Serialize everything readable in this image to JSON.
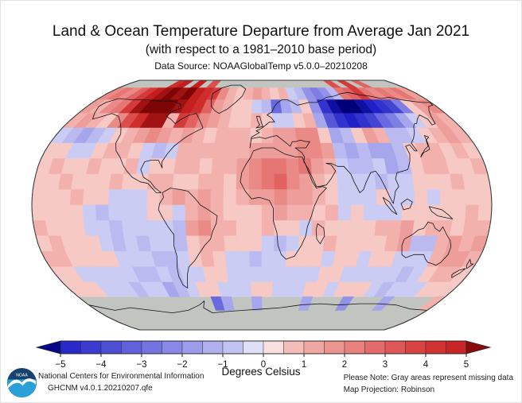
{
  "header": {
    "title": "Land & Ocean Temperature Departure from Average Jan 2021",
    "subtitle": "(with respect to a 1981–2010 base period)",
    "data_source": "Data Source: NOAAGlobalTemp v5.0.0–20210208"
  },
  "colorbar": {
    "label": "Degrees Celsius",
    "ticks": [
      "−5",
      "−4",
      "−3",
      "−2",
      "−1",
      "0",
      "1",
      "2",
      "3",
      "4",
      "5"
    ],
    "tick_values": [
      -5,
      -4,
      -3,
      -2,
      -1,
      0,
      1,
      2,
      3,
      4,
      5
    ],
    "min": -5,
    "max": 5,
    "segment_step": 0.5
  },
  "footer": {
    "logo_text": "NOAA",
    "org": "National Centers for Environmental Information",
    "dataset": "GHCNM v4.0.1.20210207.qfe",
    "note": "Please Note: Gray areas represent missing data",
    "projection": "Map Projection: Robinson"
  },
  "chart_data": {
    "type": "heatmap",
    "title": "Land & Ocean Temperature Departure from Average Jan 2021",
    "subtitle": "(with respect to a 1981–2010 base period)",
    "data_source": "NOAAGlobalTemp v5.0.0–20210208",
    "units": "Degrees Celsius",
    "projection": "Robinson",
    "legend_range": [
      -5,
      5
    ],
    "missing_color": "#c2c4c0",
    "scale_stops": [
      [
        -6,
        "#000078"
      ],
      [
        -5,
        "#2020c8"
      ],
      [
        -4,
        "#4444d2"
      ],
      [
        -3,
        "#6a6ade"
      ],
      [
        -2,
        "#9292e8"
      ],
      [
        -1,
        "#babaf0"
      ],
      [
        -0.5,
        "#caccf3"
      ],
      [
        -0.15,
        "#e8e8fa"
      ],
      [
        0.15,
        "#fae8e8"
      ],
      [
        0.5,
        "#f6c9c5"
      ],
      [
        1,
        "#f2b1ad"
      ],
      [
        2,
        "#ea8a86"
      ],
      [
        3,
        "#e16260"
      ],
      [
        4,
        "#d53a3a"
      ],
      [
        5,
        "#c41f1f"
      ],
      [
        6,
        "#7d0505"
      ]
    ],
    "grid": {
      "lon_min": -180,
      "lon_max": 180,
      "lat_max": 90,
      "lat_min": -90,
      "cell_deg": 10,
      "order": "rows top-to-bottom from 90N to 90S, columns left-to-right from 180W to 180E",
      "missing": null
    },
    "anomaly_values_degC": [
      [
        null,
        null,
        null,
        null,
        null,
        null,
        4.5,
        5,
        null,
        5,
        null,
        3.5,
        null,
        null,
        null,
        null,
        null,
        null,
        null,
        null,
        null,
        null,
        null,
        null,
        null,
        null,
        null,
        3.5,
        null,
        4,
        null,
        3,
        null,
        null,
        null,
        null
      ],
      [
        2,
        2.5,
        2,
        3,
        4,
        5,
        5.5,
        6,
        5.5,
        6,
        5,
        4.5,
        4,
        2,
        1,
        0.5,
        1,
        1.5,
        1,
        0.5,
        1,
        -0.5,
        -1,
        -2,
        -2.5,
        -2,
        -1,
        2.5,
        3,
        4,
        2.5,
        2,
        2.5,
        2,
        2.5,
        1.5
      ],
      [
        1.5,
        1,
        2,
        2.5,
        4,
        5.5,
        6,
        6,
        6,
        5.5,
        5,
        4.5,
        3,
        1.5,
        1,
        0.5,
        0.5,
        -0.5,
        -1,
        -3,
        -1.5,
        -1,
        0.5,
        -2,
        -4.5,
        -5.5,
        -6,
        -6,
        -5.5,
        -5,
        -4.5,
        -4,
        -2.5,
        0.5,
        1.5,
        2
      ],
      [
        1,
        1.5,
        1,
        0.5,
        2,
        3.5,
        4.5,
        5.5,
        5.5,
        1,
        4,
        3,
        2,
        1.5,
        1,
        0.5,
        0.5,
        1,
        0.5,
        -0.5,
        -0.5,
        0.5,
        1,
        -1.5,
        -3.5,
        -4.5,
        -5,
        -4.5,
        -4,
        -3,
        -2.5,
        -1.5,
        -0.5,
        0.5,
        1.5,
        1
      ],
      [
        -0.5,
        -1,
        -1.5,
        -1,
        -0.5,
        0.5,
        1,
        1.5,
        2,
        1.5,
        1,
        1.5,
        1,
        0.5,
        1,
        1,
        1,
        0.5,
        1,
        1.5,
        1.5,
        2,
        2,
        0.5,
        -1.5,
        -1,
        0.5,
        1.5,
        1,
        -1,
        -1,
        -0.5,
        0.5,
        1,
        1.5,
        1
      ],
      [
        0.5,
        0.5,
        -0.5,
        -0.5,
        0.5,
        1,
        1,
        0.5,
        -0.5,
        -1,
        -0.5,
        1,
        1,
        1,
        1,
        1,
        1,
        1.5,
        1.5,
        1.5,
        1.5,
        2,
        2,
        1.5,
        -1,
        -1.5,
        -1,
        -1.5,
        -1.5,
        -1,
        0.5,
        1,
        1,
        0.5,
        1,
        0.5
      ],
      [
        0.5,
        1,
        0.5,
        0.5,
        1,
        0.5,
        0.5,
        1,
        -0.5,
        0.5,
        0.5,
        1,
        1,
        0.5,
        1,
        1,
        1.5,
        2,
        2.5,
        2.5,
        2,
        2.5,
        1.5,
        1,
        -0.5,
        -1,
        -1,
        -0.5,
        -1.5,
        -1,
        0.5,
        1,
        1,
        0.5,
        0.5,
        1
      ],
      [
        0.5,
        0.5,
        1,
        0.5,
        0.5,
        0.5,
        1,
        0.5,
        0.5,
        1,
        1,
        0.5,
        0.5,
        1,
        1,
        0.5,
        1.5,
        2,
        2.5,
        3,
        2,
        1.5,
        1,
        0.5,
        -0.5,
        -0.5,
        -0.5,
        -1,
        -0.5,
        -0.5,
        0.5,
        0.5,
        0.5,
        1,
        0.5,
        0.5
      ],
      [
        0.5,
        0.5,
        0.5,
        1,
        0.5,
        0.5,
        -0.5,
        -0.5,
        -0.5,
        0.5,
        1,
        1.5,
        1,
        1.5,
        1,
        0.5,
        1,
        1.5,
        1.5,
        2,
        1.5,
        1.5,
        1,
        0.5,
        -0.5,
        -0.5,
        -0.5,
        0.5,
        -0.5,
        -0.5,
        0.5,
        -0.5,
        0.5,
        0.5,
        0.5,
        0.5
      ],
      [
        0.5,
        0.5,
        0.5,
        0.5,
        -0.5,
        -1,
        -0.5,
        -0.5,
        -0.5,
        0.5,
        0.5,
        -0.5,
        1,
        1.5,
        1,
        0.5,
        0.5,
        0.5,
        1,
        1.5,
        1,
        1,
        0.5,
        1,
        -0.5,
        0.5,
        -0.5,
        -0.5,
        -0.5,
        0.5,
        0.5,
        0.5,
        0.5,
        0.5,
        1,
        0.5
      ],
      [
        1,
        0.5,
        0.5,
        0.5,
        -0.5,
        -0.5,
        -1,
        -0.5,
        -0.5,
        -0.5,
        -0.5,
        -1,
        1.5,
        2,
        1,
        1,
        0.5,
        0.5,
        1,
        0.5,
        0.5,
        -0.5,
        1,
        0.5,
        0.5,
        0.5,
        0.5,
        1,
        1,
        1.5,
        0.5,
        1,
        1,
        0.5,
        1,
        1
      ],
      [
        0.5,
        1,
        0.5,
        0.5,
        0.5,
        -0.5,
        -1,
        -0.5,
        -1,
        -0.5,
        -0.5,
        -1,
        0.5,
        1,
        1,
        0.5,
        0.5,
        0.5,
        -0.5,
        -1,
        -0.5,
        0.5,
        0.5,
        1,
        0.5,
        0.5,
        0.5,
        0.5,
        1,
        1.5,
        -1,
        -1,
        1,
        1.5,
        1,
        1.5
      ],
      [
        1,
        1,
        0.5,
        0.5,
        0.5,
        0.5,
        -0.5,
        -0.5,
        -0.5,
        -1,
        -1,
        -0.5,
        0.5,
        1,
        0.5,
        -0.5,
        -0.5,
        -1,
        -0.5,
        -0.5,
        0.5,
        0.5,
        0.5,
        -0.5,
        0.5,
        0.5,
        -0.5,
        0.5,
        0.5,
        -0.5,
        -0.5,
        -0.5,
        1,
        1.5,
        1.5,
        1
      ],
      [
        0.5,
        0.5,
        -0.5,
        -0.5,
        -0.5,
        -0.5,
        -0.5,
        -1,
        -1,
        -0.5,
        -1,
        -0.5,
        -0.5,
        0.5,
        0.5,
        -0.5,
        -0.5,
        -0.5,
        -0.5,
        -0.5,
        -0.5,
        -0.5,
        -0.5,
        0.5,
        0.5,
        -0.5,
        -0.5,
        -0.5,
        -0.5,
        -0.5,
        -1,
        -0.5,
        0.5,
        1,
        1,
        0.5
      ],
      [
        0.5,
        0.5,
        0.5,
        -0.5,
        -0.5,
        -0.5,
        -1,
        -0.5,
        -0.5,
        -1.5,
        -1,
        -0.5,
        0.5,
        0.5,
        -0.5,
        -0.5,
        -0.5,
        0.5,
        0.5,
        -0.5,
        -0.5,
        -0.5,
        0.5,
        0.5,
        -0.5,
        0.5,
        0.5,
        0.5,
        -0.5,
        -1,
        -0.5,
        -0.5,
        -0.5,
        0.5,
        0.5,
        0.5
      ],
      [
        null,
        null,
        null,
        null,
        null,
        null,
        null,
        null,
        null,
        null,
        null,
        null,
        null,
        -3,
        -1.5,
        null,
        null,
        -1.5,
        null,
        null,
        null,
        null,
        -1.5,
        null,
        null,
        null,
        -2,
        null,
        null,
        null,
        -1.5,
        null,
        null,
        null,
        null,
        1
      ],
      [
        null,
        null,
        null,
        null,
        null,
        null,
        null,
        null,
        null,
        null,
        null,
        null,
        null,
        null,
        null,
        null,
        null,
        null,
        null,
        null,
        null,
        null,
        null,
        null,
        null,
        null,
        null,
        null,
        null,
        null,
        null,
        null,
        null,
        null,
        null,
        null
      ],
      [
        null,
        null,
        null,
        null,
        null,
        null,
        null,
        null,
        null,
        null,
        null,
        null,
        null,
        null,
        null,
        null,
        null,
        null,
        null,
        null,
        null,
        null,
        null,
        null,
        null,
        null,
        null,
        null,
        null,
        null,
        null,
        null,
        null,
        null,
        null,
        null
      ]
    ]
  }
}
